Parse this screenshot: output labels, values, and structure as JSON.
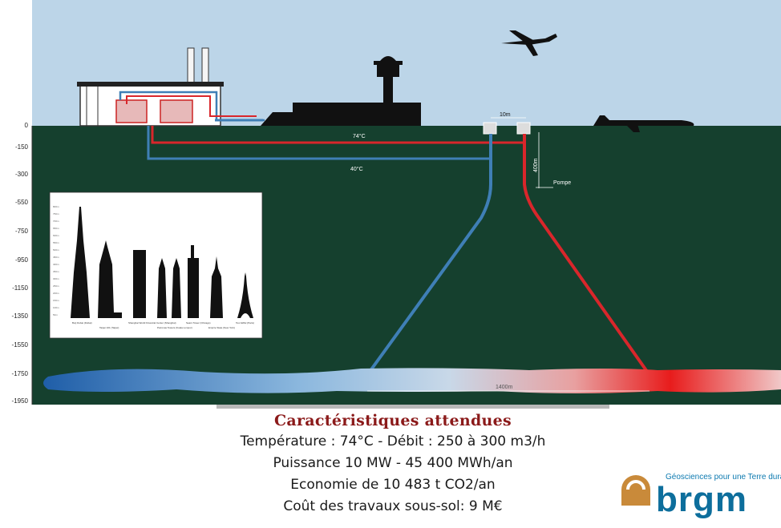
{
  "diagram": {
    "depth_ticks": [
      "0",
      "-150",
      "-300",
      "-550",
      "-750",
      "-950",
      "-1150",
      "-1350",
      "-1550",
      "-1750",
      "-1950"
    ],
    "hot_pipe_label": "74°C",
    "cold_pipe_label": "40°C",
    "well_spacing_label": "10m",
    "pump_depth_label": "400m",
    "pump_label": "Pompe",
    "reservoir_span_label": "1400m",
    "hot_color": "#d9262b",
    "cold_color": "#3f7fb6",
    "sky_color": "#bcd5e8",
    "ground_color": "#15402e"
  },
  "towers": {
    "names": [
      "Burj Dubai (Dubai)",
      "Taipei 101 (Taipei)",
      "Shanghai World Financial Center (Shanghai)",
      "Petronas Towers (Kuala Lumpur)",
      "Sears Tower (Chicago)",
      "Empire State (New York)",
      "Tour Eiffel (Paris)"
    ],
    "y_ticks": [
      "800m",
      "750m",
      "700m",
      "650m",
      "600m",
      "550m",
      "500m",
      "450m",
      "400m",
      "350m",
      "300m",
      "250m",
      "200m",
      "150m",
      "100m",
      "50m"
    ]
  },
  "info": {
    "title": "Caractéristiques attendues",
    "line1": "Température : 74°C - Débit : 250 à 300 m3/h",
    "line2": "Puissance 10 MW - 45 400 MWh/an",
    "line3": "Economie de 10 483 t CO2/an",
    "line4": "Coût des travaux sous-sol: 9 M€"
  },
  "logo": {
    "tagline": "Géosciences pour une Terre durable",
    "brand": "brgm",
    "brand_color": "#0d6e9c",
    "accent_color": "#c98a3a"
  }
}
